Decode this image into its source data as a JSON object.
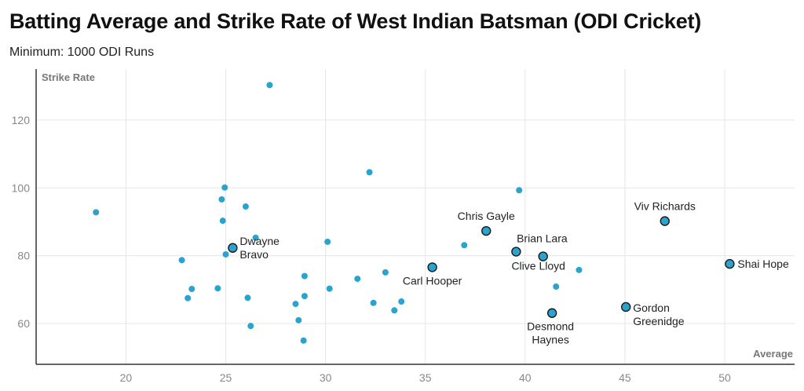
{
  "header": {
    "title": "Batting Average and Strike Rate of West Indian Batsman (ODI Cricket)",
    "subtitle": "Minimum: 1000 ODI Runs"
  },
  "colors": {
    "point": "#2ba3cf",
    "highlight_stroke": "#1a1a1a",
    "grid": "#e6e6e6",
    "axis": "#333333"
  },
  "chart_data": {
    "type": "scatter",
    "title": "Batting Average and Strike Rate of West Indian Batsman (ODI Cricket)",
    "subtitle": "Minimum: 1000 ODI Runs",
    "xlabel": "Average",
    "ylabel": "Strike Rate",
    "xlim": [
      15.5,
      53.5
    ],
    "ylim": [
      48,
      135
    ],
    "xticks": [
      20,
      25,
      30,
      35,
      40,
      45,
      50
    ],
    "yticks": [
      60,
      80,
      100,
      120
    ],
    "grid": true,
    "points": [
      {
        "x": 18.5,
        "y": 92.8
      },
      {
        "x": 22.8,
        "y": 78.7
      },
      {
        "x": 23.1,
        "y": 67.5
      },
      {
        "x": 23.3,
        "y": 70.2
      },
      {
        "x": 24.6,
        "y": 70.4
      },
      {
        "x": 24.8,
        "y": 96.6
      },
      {
        "x": 24.85,
        "y": 90.3
      },
      {
        "x": 24.95,
        "y": 100.1
      },
      {
        "x": 25.0,
        "y": 80.4
      },
      {
        "x": 25.35,
        "y": 82.3,
        "label": "Dwayne Bravo",
        "highlight": true
      },
      {
        "x": 26.0,
        "y": 94.5
      },
      {
        "x": 26.1,
        "y": 67.6
      },
      {
        "x": 26.25,
        "y": 59.3
      },
      {
        "x": 26.5,
        "y": 85.3
      },
      {
        "x": 27.2,
        "y": 130.3
      },
      {
        "x": 28.5,
        "y": 65.8
      },
      {
        "x": 28.65,
        "y": 61.0
      },
      {
        "x": 28.9,
        "y": 55.0
      },
      {
        "x": 28.95,
        "y": 68.1
      },
      {
        "x": 28.95,
        "y": 74.0
      },
      {
        "x": 30.1,
        "y": 84.1
      },
      {
        "x": 30.2,
        "y": 70.3
      },
      {
        "x": 31.6,
        "y": 73.2
      },
      {
        "x": 32.2,
        "y": 104.6
      },
      {
        "x": 32.4,
        "y": 66.1
      },
      {
        "x": 33.0,
        "y": 75.1
      },
      {
        "x": 33.45,
        "y": 63.9
      },
      {
        "x": 33.8,
        "y": 66.5
      },
      {
        "x": 35.35,
        "y": 76.6,
        "label": "Carl Hooper",
        "highlight": true
      },
      {
        "x": 36.95,
        "y": 83.1
      },
      {
        "x": 38.05,
        "y": 87.3,
        "label": "Chris Gayle",
        "highlight": true
      },
      {
        "x": 39.55,
        "y": 81.2,
        "label": "Brian Lara",
        "highlight": true
      },
      {
        "x": 39.7,
        "y": 99.3
      },
      {
        "x": 40.9,
        "y": 79.8,
        "label": "Clive Lloyd",
        "highlight": true
      },
      {
        "x": 41.35,
        "y": 63.1,
        "label": "Desmond Haynes",
        "highlight": true
      },
      {
        "x": 41.55,
        "y": 70.9
      },
      {
        "x": 42.7,
        "y": 75.8
      },
      {
        "x": 45.05,
        "y": 64.9,
        "label": "Gordon Greenidge",
        "highlight": true
      },
      {
        "x": 47.0,
        "y": 90.2,
        "label": "Viv Richards",
        "highlight": true
      },
      {
        "x": 50.25,
        "y": 77.6,
        "label": "Shai Hope",
        "highlight": true
      }
    ]
  }
}
